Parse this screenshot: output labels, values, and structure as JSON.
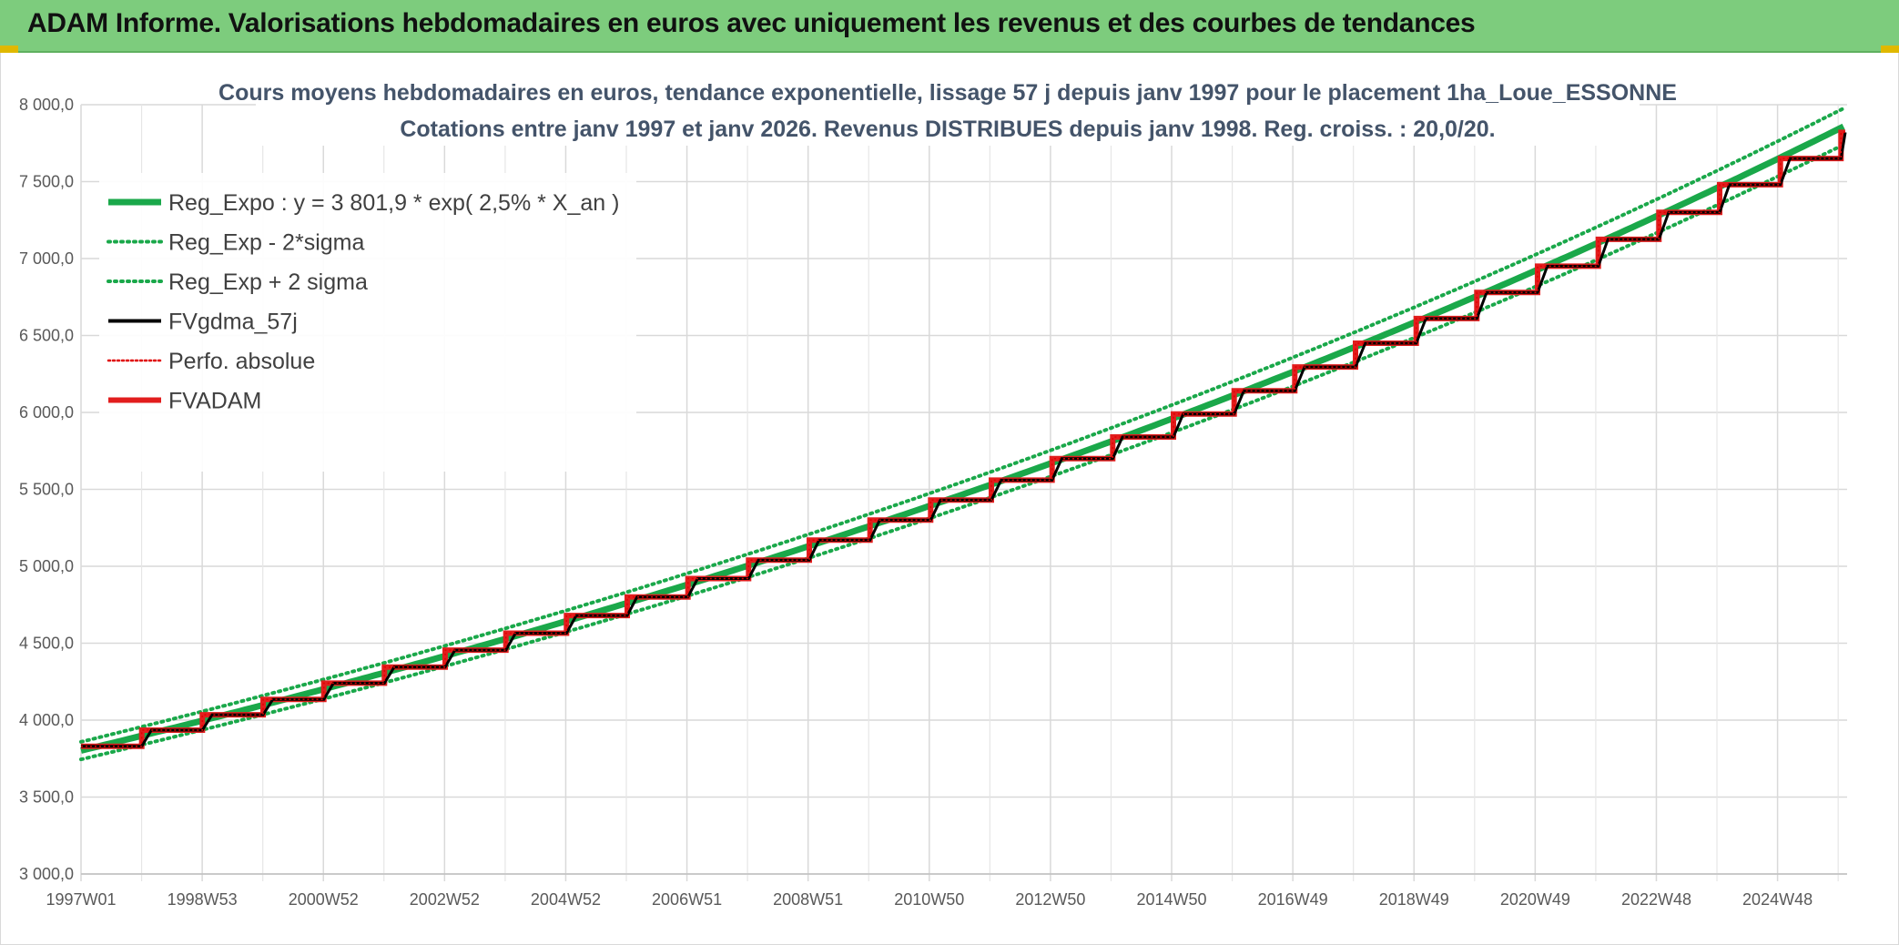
{
  "header": {
    "title": "ADAM Informe. Valorisations hebdomadaires en euros avec uniquement les revenus et des courbes de tendances"
  },
  "colors": {
    "banner": "#7dcc7d",
    "reg_expo": "#1aa84a",
    "sigma": "#1aa84a",
    "fvgdma": "#000000",
    "perfo": "#e00000",
    "fvadam": "#e21d1d"
  },
  "chart_data": {
    "type": "line",
    "title_lines": [
      "Cours moyens hebdomadaires en euros, tendance exponentielle, lissage 57 j depuis janv 1997 pour le placement 1ha_Loue_ESSONNE",
      "Cotations entre janv 1997 et janv 2026. Revenus DISTRIBUES depuis janv 1998. Reg. croiss. : 20,0/20."
    ],
    "x_ticks": [
      "1997W01",
      "1998W53",
      "2000W52",
      "2002W52",
      "2004W52",
      "2006W51",
      "2008W51",
      "2010W50",
      "2012W50",
      "2014W50",
      "2016W49",
      "2018W49",
      "2020W49",
      "2022W48",
      "2024W48"
    ],
    "x_range_years": [
      1997.0,
      2026.1
    ],
    "ylim": [
      3000,
      8000
    ],
    "y_ticks": [
      "3 000,0",
      "3 500,0",
      "4 000,0",
      "4 500,0",
      "5 000,0",
      "5 500,0",
      "6 000,0",
      "6 500,0",
      "7 000,0",
      "7 500,0",
      "8 000,0"
    ],
    "grid": true,
    "legend_position": "top-left",
    "series": [
      {
        "name": "Reg_Expo : y = 3 801,9 * exp( 2,5% *  X_an )",
        "style": "solid-thick",
        "color": "#1aa84a",
        "model": {
          "a": 3801.9,
          "rate": 0.025
        }
      },
      {
        "name": "Reg_Exp - 2*sigma",
        "style": "dotted",
        "color": "#1aa84a",
        "model": {
          "a": 3801.9,
          "rate": 0.025,
          "offset_factor": 0.985
        }
      },
      {
        "name": "Reg_Exp + 2 sigma",
        "style": "dotted",
        "color": "#1aa84a",
        "model": {
          "a": 3801.9,
          "rate": 0.025,
          "offset_factor": 1.015
        }
      },
      {
        "name": "FVgdma_57j",
        "style": "solid",
        "color": "#000000"
      },
      {
        "name": "Perfo. absolue",
        "style": "dotted-thin",
        "color": "#e00000"
      },
      {
        "name": "FVADAM",
        "style": "solid-thick",
        "color": "#e21d1d",
        "steps": [
          {
            "from": 1997.0,
            "value": 3830
          },
          {
            "from": 1998.0,
            "value": 3935
          },
          {
            "from": 1999.0,
            "value": 4035
          },
          {
            "from": 2000.0,
            "value": 4135
          },
          {
            "from": 2001.0,
            "value": 4240
          },
          {
            "from": 2002.0,
            "value": 4345
          },
          {
            "from": 2003.0,
            "value": 4455
          },
          {
            "from": 2004.0,
            "value": 4565
          },
          {
            "from": 2005.0,
            "value": 4680
          },
          {
            "from": 2006.0,
            "value": 4800
          },
          {
            "from": 2007.0,
            "value": 4920
          },
          {
            "from": 2008.0,
            "value": 5040
          },
          {
            "from": 2009.0,
            "value": 5170
          },
          {
            "from": 2010.0,
            "value": 5300
          },
          {
            "from": 2011.0,
            "value": 5430
          },
          {
            "from": 2012.0,
            "value": 5560
          },
          {
            "from": 2013.0,
            "value": 5700
          },
          {
            "from": 2014.0,
            "value": 5840
          },
          {
            "from": 2015.0,
            "value": 5990
          },
          {
            "from": 2016.0,
            "value": 6140
          },
          {
            "from": 2017.0,
            "value": 6295
          },
          {
            "from": 2018.0,
            "value": 6450
          },
          {
            "from": 2019.0,
            "value": 6610
          },
          {
            "from": 2020.0,
            "value": 6780
          },
          {
            "from": 2021.0,
            "value": 6950
          },
          {
            "from": 2022.0,
            "value": 7125
          },
          {
            "from": 2023.0,
            "value": 7300
          },
          {
            "from": 2024.0,
            "value": 7480
          },
          {
            "from": 2025.0,
            "value": 7650
          },
          {
            "from": 2026.0,
            "value": 7820
          }
        ]
      }
    ]
  }
}
